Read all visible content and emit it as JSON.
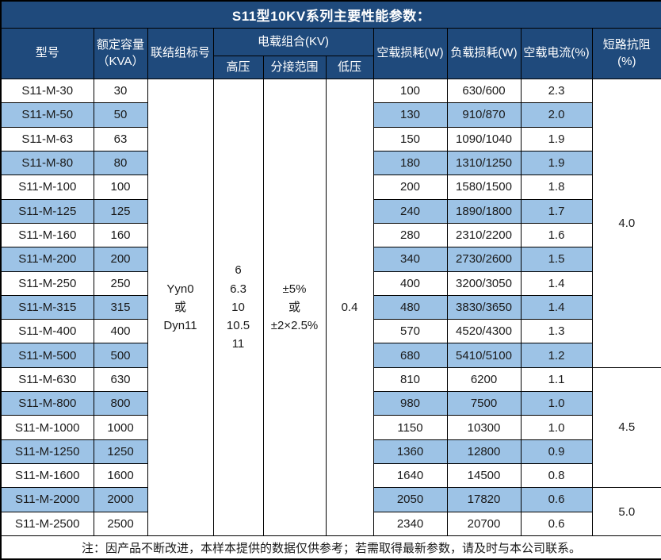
{
  "title": "S11型10KV系列主要性能参数：",
  "table": {
    "header": {
      "model": "型号",
      "capacity": "额定容量\n（KVA）",
      "connection": "联结组标号",
      "voltage_group": "电载组合(KV)",
      "hv": "高压",
      "tap_range": "分接范围",
      "lv": "低压",
      "no_load_loss": "空载损耗(W)",
      "load_loss": "负载损耗(W)",
      "no_load_current": "空载电流(%)",
      "impedance": "短路抗阻(%)"
    },
    "merged": {
      "connection": "Yyn0\n或\nDyn11",
      "hv": "6\n6.3\n10\n10.5\n11",
      "tap_range": "±5%\n或\n±2×2.5%",
      "lv": "0.4"
    },
    "impedance_groups": [
      {
        "value": "4.0",
        "span": 12
      },
      {
        "value": "4.5",
        "span": 5
      },
      {
        "value": "5.0",
        "span": 2
      }
    ],
    "rows": [
      {
        "model": "S11-M-30",
        "capacity": "30",
        "no_load_loss": "100",
        "load_loss": "630/600",
        "no_load_current": "2.3"
      },
      {
        "model": "S11-M-50",
        "capacity": "50",
        "no_load_loss": "130",
        "load_loss": "910/870",
        "no_load_current": "2.0"
      },
      {
        "model": "S11-M-63",
        "capacity": "63",
        "no_load_loss": "150",
        "load_loss": "1090/1040",
        "no_load_current": "1.9"
      },
      {
        "model": "S11-M-80",
        "capacity": "80",
        "no_load_loss": "180",
        "load_loss": "1310/1250",
        "no_load_current": "1.9"
      },
      {
        "model": "S11-M-100",
        "capacity": "100",
        "no_load_loss": "200",
        "load_loss": "1580/1500",
        "no_load_current": "1.8"
      },
      {
        "model": "S11-M-125",
        "capacity": "125",
        "no_load_loss": "240",
        "load_loss": "1890/1800",
        "no_load_current": "1.7"
      },
      {
        "model": "S11-M-160",
        "capacity": "160",
        "no_load_loss": "280",
        "load_loss": "2310/2200",
        "no_load_current": "1.6"
      },
      {
        "model": "S11-M-200",
        "capacity": "200",
        "no_load_loss": "340",
        "load_loss": "2730/2600",
        "no_load_current": "1.5"
      },
      {
        "model": "S11-M-250",
        "capacity": "250",
        "no_load_loss": "400",
        "load_loss": "3200/3050",
        "no_load_current": "1.4"
      },
      {
        "model": "S11-M-315",
        "capacity": "315",
        "no_load_loss": "480",
        "load_loss": "3830/3650",
        "no_load_current": "1.4"
      },
      {
        "model": "S11-M-400",
        "capacity": "400",
        "no_load_loss": "570",
        "load_loss": "4520/4300",
        "no_load_current": "1.3"
      },
      {
        "model": "S11-M-500",
        "capacity": "500",
        "no_load_loss": "680",
        "load_loss": "5410/5100",
        "no_load_current": "1.2"
      },
      {
        "model": "S11-M-630",
        "capacity": "630",
        "no_load_loss": "810",
        "load_loss": "6200",
        "no_load_current": "1.1"
      },
      {
        "model": "S11-M-800",
        "capacity": "800",
        "no_load_loss": "980",
        "load_loss": "7500",
        "no_load_current": "1.0"
      },
      {
        "model": "S11-M-1000",
        "capacity": "1000",
        "no_load_loss": "1150",
        "load_loss": "10300",
        "no_load_current": "1.0"
      },
      {
        "model": "S11-M-1250",
        "capacity": "1250",
        "no_load_loss": "1360",
        "load_loss": "12800",
        "no_load_current": "0.9"
      },
      {
        "model": "S11-M-1600",
        "capacity": "1600",
        "no_load_loss": "1640",
        "load_loss": "14500",
        "no_load_current": "0.8"
      },
      {
        "model": "S11-M-2000",
        "capacity": "2000",
        "no_load_loss": "2050",
        "load_loss": "17820",
        "no_load_current": "0.6"
      },
      {
        "model": "S11-M-2500",
        "capacity": "2500",
        "no_load_loss": "2340",
        "load_loss": "20700",
        "no_load_current": "0.6"
      }
    ]
  },
  "footer": "注：因产品不断改进，本样本提供的数据仅供参考；若需取得最新参数，请及时与本公司联系。",
  "colors": {
    "header_bg": "#1F4A7C",
    "alt_row_bg": "#9DC3E6",
    "row_bg": "#FFFFFF",
    "border": "#000000",
    "text": "#1A1A1A",
    "header_text": "#FFFFFF"
  }
}
